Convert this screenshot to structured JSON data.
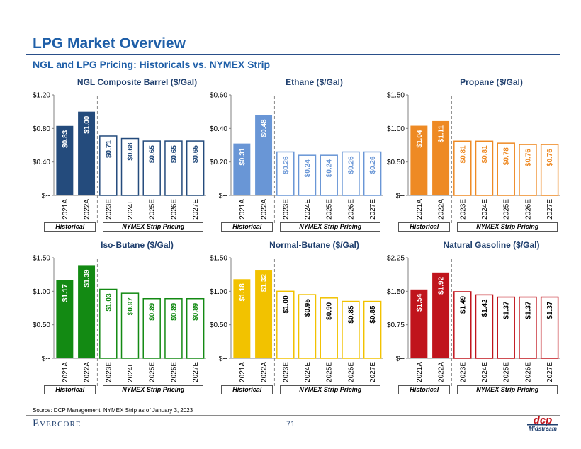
{
  "page": {
    "title": "LPG Market Overview",
    "subtitle": "NGL and LPG Pricing: Historicals vs. NYMEX Strip",
    "source": "Source: DCP Management, NYMEX Strip as of January 3, 2023",
    "page_number": "71",
    "evercore": "Evercore",
    "dcp_logo_text": "dcp",
    "dcp_logo_sub": "Midstream",
    "historical_label": "Historical",
    "strip_label": "NYMEX Strip Pricing"
  },
  "colors": {
    "title": "#1f5fa8",
    "composite": "#244b7c",
    "ethane": "#6996d6",
    "propane": "#ee8a24",
    "isobutane": "#138a13",
    "normalbutane": "#f2c200",
    "natgas": "#c0141c"
  },
  "chart_data": [
    {
      "type": "bar",
      "title": "NGL Composite Barrel ($/Gal)",
      "categories": [
        "2021A",
        "2022A",
        "2023E",
        "2024E",
        "2025E",
        "2026E",
        "2027E"
      ],
      "values": [
        0.83,
        1.0,
        0.71,
        0.68,
        0.65,
        0.65,
        0.65
      ],
      "labels": [
        "$0.83",
        "$1.00",
        "$0.71",
        "$0.68",
        "$0.65",
        "$0.65",
        "$0.65"
      ],
      "yticks": [
        "$--",
        "$0.40",
        "$0.80",
        "$1.20"
      ],
      "ylim": [
        0,
        1.2
      ],
      "historical_count": 2,
      "color_key": "composite"
    },
    {
      "type": "bar",
      "title": "Ethane ($/Gal)",
      "categories": [
        "2021A",
        "2022A",
        "2023E",
        "2024E",
        "2025E",
        "2026E",
        "2027E"
      ],
      "values": [
        0.31,
        0.48,
        0.26,
        0.24,
        0.24,
        0.26,
        0.26
      ],
      "labels": [
        "$0.31",
        "$0.48",
        "$0.26",
        "$0.24",
        "$0.24",
        "$0.26",
        "$0.26"
      ],
      "yticks": [
        "$--",
        "$0.20",
        "$0.40",
        "$0.60"
      ],
      "ylim": [
        0,
        0.6
      ],
      "historical_count": 2,
      "color_key": "ethane"
    },
    {
      "type": "bar",
      "title": "Propane ($/Gal)",
      "categories": [
        "2021A",
        "2022A",
        "2023E",
        "2024E",
        "2025E",
        "2026E",
        "2027E"
      ],
      "values": [
        1.04,
        1.11,
        0.81,
        0.81,
        0.78,
        0.76,
        0.76
      ],
      "labels": [
        "$1.04",
        "$1.11",
        "$0.81",
        "$0.81",
        "$0.78",
        "$0.76",
        "$0.76"
      ],
      "yticks": [
        "$--",
        "$0.50",
        "$1.00",
        "$1.50"
      ],
      "ylim": [
        0,
        1.5
      ],
      "historical_count": 2,
      "color_key": "propane"
    },
    {
      "type": "bar",
      "title": "Iso-Butane ($/Gal)",
      "categories": [
        "2021A",
        "2022A",
        "2023E",
        "2024E",
        "2025E",
        "2026E",
        "2027E"
      ],
      "values": [
        1.17,
        1.39,
        1.03,
        0.97,
        0.89,
        0.89,
        0.89
      ],
      "labels": [
        "$1.17",
        "$1.39",
        "$1.03",
        "$0.97",
        "$0.89",
        "$0.89",
        "$0.89"
      ],
      "yticks": [
        "$--",
        "$0.50",
        "$1.00",
        "$1.50"
      ],
      "ylim": [
        0,
        1.5
      ],
      "historical_count": 2,
      "color_key": "isobutane"
    },
    {
      "type": "bar",
      "title": "Normal-Butane ($/Gal)",
      "categories": [
        "2021A",
        "2022A",
        "2023E",
        "2024E",
        "2025E",
        "2026E",
        "2027E"
      ],
      "values": [
        1.18,
        1.32,
        1.0,
        0.95,
        0.9,
        0.85,
        0.85
      ],
      "labels": [
        "$1.18",
        "$1.32",
        "$1.00",
        "$0.95",
        "$0.90",
        "$0.85",
        "$0.85"
      ],
      "yticks": [
        "$--",
        "$0.50",
        "$1.00",
        "$1.50"
      ],
      "ylim": [
        0,
        1.5
      ],
      "historical_count": 2,
      "color_key": "normalbutane"
    },
    {
      "type": "bar",
      "title": "Natural Gasoline ($/Gal)",
      "categories": [
        "2021A",
        "2022A",
        "2023E",
        "2024E",
        "2025E",
        "2026E",
        "2027E"
      ],
      "values": [
        1.54,
        1.92,
        1.49,
        1.42,
        1.37,
        1.37,
        1.37
      ],
      "labels": [
        "$1.54",
        "$1.92",
        "$1.49",
        "$1.42",
        "$1.37",
        "$1.37",
        "$1.37"
      ],
      "yticks": [
        "$--",
        "$0.75",
        "$1.50",
        "$2.25"
      ],
      "ylim": [
        0,
        2.25
      ],
      "historical_count": 2,
      "color_key": "natgas"
    }
  ]
}
